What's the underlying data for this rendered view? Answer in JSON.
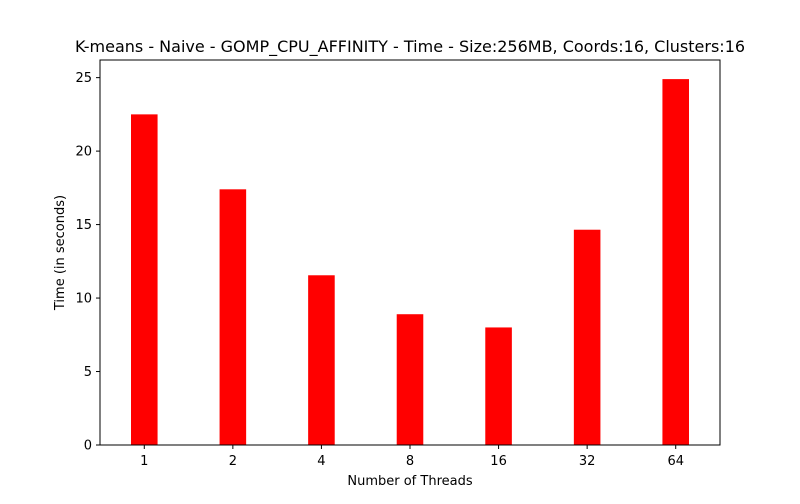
{
  "chart_data": {
    "type": "bar",
    "title": "K-means - Naive - GOMP_CPU_AFFINITY - Time - Size:256MB, Coords:16, Clusters:16",
    "xlabel": "Number of Threads",
    "ylabel": "Time (in seconds)",
    "categories": [
      "1",
      "2",
      "4",
      "8",
      "16",
      "32",
      "64"
    ],
    "values": [
      22.5,
      17.4,
      11.55,
      8.9,
      8.0,
      14.65,
      24.9
    ],
    "ylim": [
      0,
      26.2
    ],
    "yticks": [
      0,
      5,
      10,
      15,
      20,
      25
    ],
    "grid": false,
    "legend": "none",
    "bar_color": "#ff0000"
  }
}
